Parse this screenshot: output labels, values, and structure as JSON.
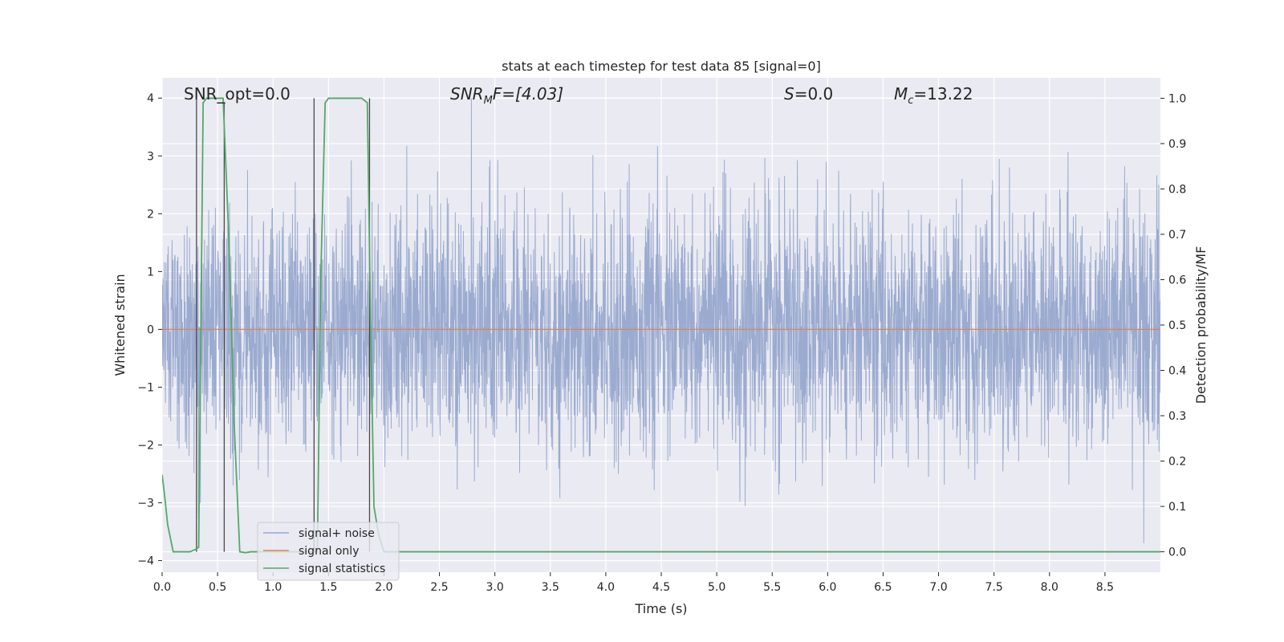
{
  "chart_data": {
    "type": "line",
    "title": "stats at each timestep for test data 85 [signal=0]",
    "xlabel": "Time (s)",
    "ylabel": "Whitened strain",
    "y2label": "Detection probability/MF",
    "xlim": [
      0.0,
      9.0
    ],
    "ylim": [
      -4.2,
      4.35
    ],
    "y2lim": [
      -0.045,
      1.045
    ],
    "x_ticks": [
      0.0,
      0.5,
      1.0,
      1.5,
      2.0,
      2.5,
      3.0,
      3.5,
      4.0,
      4.5,
      5.0,
      5.5,
      6.0,
      6.5,
      7.0,
      7.5,
      8.0,
      8.5
    ],
    "x_tick_labels": [
      "0.0",
      "0.5",
      "1.0",
      "1.5",
      "2.0",
      "2.5",
      "3.0",
      "3.5",
      "4.0",
      "4.5",
      "5.0",
      "5.5",
      "6.0",
      "6.5",
      "7.0",
      "7.5",
      "8.0",
      "8.5"
    ],
    "y_ticks": [
      4,
      3,
      2,
      1,
      0,
      -1,
      -2,
      -3,
      -4
    ],
    "y_tick_labels": [
      "4",
      "3",
      "2",
      "1",
      "0",
      "−1",
      "−2",
      "−3",
      "−4"
    ],
    "y2_ticks": [
      1.0,
      0.9,
      0.8,
      0.7,
      0.6,
      0.5,
      0.4,
      0.3,
      0.2,
      0.1,
      0.0
    ],
    "y2_tick_labels": [
      "1.0",
      "0.9",
      "0.8",
      "0.7",
      "0.6",
      "0.5",
      "0.4",
      "0.3",
      "0.2",
      "0.1",
      "0.0"
    ],
    "grid": true,
    "legend_position": "bottom-left",
    "annotations": {
      "snr_opt": "SNR_opt=0.0",
      "snr_mf_main": "SNR",
      "snr_mf_sub": "M",
      "snr_mf_rest": "F=[4.03]",
      "s_main": "S",
      "s_rest": "=0.0",
      "mc_main": "M",
      "mc_sub": "c",
      "mc_rest": "=13.22"
    },
    "series": [
      {
        "name": "signal+ noise",
        "color": "#97a8ce",
        "x_range": [
          0.0,
          9.0
        ],
        "envelope_abs": 2.5,
        "peak_abs": 4.0
      },
      {
        "name": "signal only",
        "color": "#dd8452",
        "x": [
          0.0,
          9.0
        ],
        "y": [
          0.0,
          0.0
        ]
      },
      {
        "name": "signal statistics",
        "color": "#55a868",
        "axis": "right",
        "x": [
          0.0,
          0.02,
          0.05,
          0.1,
          0.15,
          0.2,
          0.25,
          0.3,
          0.33,
          0.37,
          0.4,
          0.45,
          0.5,
          0.55,
          0.6,
          0.65,
          0.7,
          0.75,
          0.8,
          1.0,
          1.2,
          1.3,
          1.35,
          1.4,
          1.43,
          1.47,
          1.5,
          1.6,
          1.8,
          1.85,
          1.88,
          1.91,
          1.95,
          2.0,
          2.3,
          3.0,
          9.0
        ],
        "y": [
          0.17,
          0.13,
          0.06,
          0.0,
          0.0,
          0.0,
          0.0,
          0.005,
          0.01,
          0.99,
          1.0,
          1.0,
          1.0,
          1.0,
          0.7,
          0.28,
          0.0,
          -0.002,
          0.0,
          0.0,
          0.0,
          0.0,
          0.0,
          0.0,
          0.6,
          0.99,
          1.0,
          1.0,
          1.0,
          0.99,
          0.5,
          0.1,
          0.04,
          0.0,
          0.0,
          0.0,
          0.0
        ]
      }
    ],
    "vertical_markers": [
      {
        "x": 0.31,
        "y_bottom": 0.0,
        "y_top": 1.0
      },
      {
        "x": 0.56,
        "y_bottom": 0.0,
        "y_top": 0.99
      },
      {
        "x": 1.37,
        "y_bottom": 0.0,
        "y_top": 1.0
      },
      {
        "x": 1.87,
        "y_bottom": 0.0,
        "y_top": 1.0
      }
    ]
  }
}
